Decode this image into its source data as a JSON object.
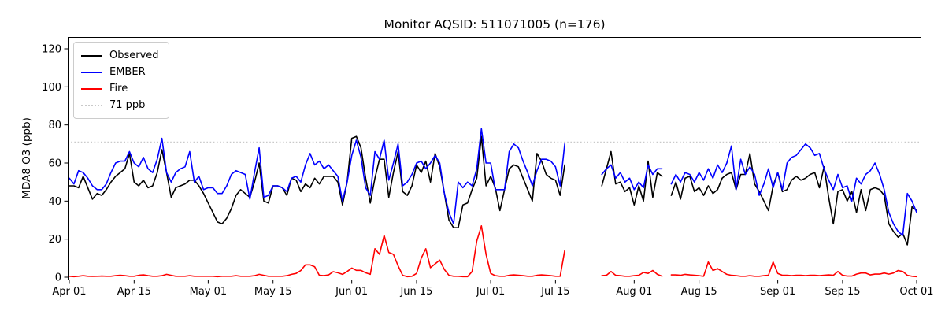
{
  "header": {
    "title": "Monitor AQSID: 511071005 (n=176)"
  },
  "legend": {
    "items": [
      {
        "label": "Observed",
        "color": "#000000",
        "style": "solid"
      },
      {
        "label": "EMBER",
        "color": "#0000ff",
        "style": "solid"
      },
      {
        "label": "Fire",
        "color": "#ff0000",
        "style": "solid"
      },
      {
        "label": "71 ppb",
        "color": "#c9c9c9",
        "style": "dotted"
      }
    ]
  },
  "chart_data": {
    "type": "line",
    "title": "Monitor AQSID: 511071005 (n=176)",
    "xlabel": "",
    "ylabel": "MDA8 O3 (ppb)",
    "ylim": [
      -1.2,
      126
    ],
    "yticks": [
      0,
      20,
      40,
      60,
      80,
      100,
      120
    ],
    "xticks": [
      {
        "day": 0,
        "label": "Apr 01"
      },
      {
        "day": 14,
        "label": "Apr 15"
      },
      {
        "day": 30,
        "label": "May 01"
      },
      {
        "day": 44,
        "label": "May 15"
      },
      {
        "day": 61,
        "label": "Jun 01"
      },
      {
        "day": 75,
        "label": "Jun 15"
      },
      {
        "day": 91,
        "label": "Jul 01"
      },
      {
        "day": 105,
        "label": "Jul 15"
      },
      {
        "day": 122,
        "label": "Aug 01"
      },
      {
        "day": 136,
        "label": "Aug 15"
      },
      {
        "day": 153,
        "label": "Sep 01"
      },
      {
        "day": 167,
        "label": "Sep 15"
      },
      {
        "day": 183,
        "label": "Oct 01"
      }
    ],
    "x_start": "Apr 01",
    "x_end": "Oct 01",
    "n_days_span": 184,
    "n_valid_points": 176,
    "missing_dates": [
      "Jul 18",
      "Jul 19",
      "Jul 20",
      "Jul 21",
      "Jul 22",
      "Jul 23",
      "Jul 24",
      "Aug 08"
    ],
    "threshold": {
      "value": 71,
      "label": "71 ppb",
      "color": "#c9c9c9",
      "style": "dotted"
    },
    "grid": false,
    "legend_position": "upper left",
    "series": [
      {
        "name": "Observed",
        "color": "#000000",
        "values": [
          48,
          48,
          47,
          53,
          47,
          41,
          44,
          43,
          46,
          50,
          53,
          55,
          57,
          65,
          50,
          48,
          51,
          47,
          48,
          55,
          67,
          55,
          42,
          47,
          48,
          49,
          51,
          51,
          48,
          44,
          39,
          34,
          29,
          28,
          31,
          36,
          43,
          46,
          44,
          42,
          50,
          60,
          40,
          39,
          48,
          48,
          47,
          43,
          52,
          51,
          45,
          49,
          47,
          52,
          49,
          53,
          53,
          53,
          50,
          38,
          50,
          73,
          74,
          68,
          52,
          39,
          52,
          62,
          62,
          42,
          55,
          66,
          45,
          43,
          48,
          59,
          55,
          61,
          50,
          65,
          58,
          44,
          30,
          26,
          26,
          38,
          39,
          46,
          52,
          74,
          48,
          53,
          47,
          35,
          46,
          57,
          59,
          58,
          52,
          46,
          40,
          65,
          61,
          54,
          52,
          51,
          43,
          59,
          null,
          null,
          null,
          null,
          null,
          null,
          null,
          48,
          57,
          66,
          49,
          50,
          45,
          47,
          38,
          48,
          40,
          61,
          42,
          55,
          53,
          null,
          43,
          50,
          41,
          52,
          53,
          45,
          47,
          43,
          48,
          44,
          46,
          52,
          54,
          55,
          46,
          54,
          54,
          65,
          49,
          45,
          40,
          35,
          48,
          55,
          45,
          46,
          51,
          53,
          51,
          52,
          54,
          55,
          47,
          58,
          42,
          28,
          45,
          46,
          40,
          45,
          34,
          46,
          35,
          46,
          47,
          46,
          43,
          28,
          24,
          21,
          23,
          17,
          37,
          35
        ]
      },
      {
        "name": "EMBER",
        "color": "#0000ff",
        "values": [
          52,
          49,
          56,
          55,
          52,
          48,
          46,
          46,
          49,
          55,
          60,
          61,
          61,
          66,
          60,
          58,
          63,
          57,
          55,
          62,
          73,
          55,
          50,
          55,
          57,
          58,
          66,
          50,
          53,
          46,
          47,
          47,
          44,
          44,
          48,
          54,
          56,
          55,
          54,
          41,
          55,
          68,
          42,
          43,
          48,
          48,
          47,
          45,
          52,
          53,
          50,
          59,
          65,
          59,
          61,
          57,
          59,
          56,
          53,
          40,
          50,
          64,
          72,
          63,
          47,
          43,
          66,
          62,
          72,
          51,
          60,
          70,
          48,
          50,
          54,
          60,
          61,
          57,
          60,
          64,
          60,
          44,
          34,
          28,
          50,
          47,
          50,
          48,
          57,
          78,
          60,
          60,
          46,
          46,
          46,
          66,
          70,
          68,
          61,
          55,
          48,
          56,
          62,
          62,
          61,
          58,
          48,
          70,
          null,
          null,
          null,
          null,
          null,
          null,
          null,
          54,
          57,
          59,
          52,
          55,
          50,
          52,
          46,
          50,
          47,
          59,
          54,
          57,
          57,
          null,
          49,
          54,
          50,
          55,
          54,
          50,
          55,
          51,
          57,
          52,
          59,
          55,
          60,
          69,
          46,
          62,
          54,
          58,
          54,
          43,
          49,
          57,
          47,
          55,
          46,
          60,
          63,
          64,
          67,
          70,
          68,
          64,
          65,
          57,
          51,
          46,
          54,
          47,
          48,
          40,
          52,
          49,
          54,
          56,
          60,
          54,
          46,
          34,
          28,
          24,
          22,
          44,
          40,
          34
        ]
      },
      {
        "name": "Fire",
        "color": "#ff0000",
        "values": [
          0.5,
          0.3,
          0.5,
          0.8,
          0.5,
          0.4,
          0.5,
          0.6,
          0.5,
          0.5,
          0.8,
          1,
          0.8,
          0.5,
          0.5,
          1,
          1.2,
          0.8,
          0.5,
          0.5,
          0.8,
          1.5,
          1,
          0.5,
          0.5,
          0.5,
          0.8,
          0.5,
          0.5,
          0.5,
          0.5,
          0.5,
          0.3,
          0.5,
          0.5,
          0.5,
          0.8,
          0.5,
          0.5,
          0.5,
          0.8,
          1.5,
          1,
          0.5,
          0.5,
          0.5,
          0.5,
          0.8,
          1.5,
          2,
          3.5,
          6.5,
          6.5,
          5.5,
          1,
          0.8,
          1.2,
          2.9,
          2.3,
          1.5,
          3,
          4.8,
          3.6,
          3.6,
          2.3,
          1.5,
          15,
          12,
          22,
          13,
          12,
          6,
          1,
          0.3,
          0.5,
          2,
          10,
          15,
          5,
          7,
          9,
          4,
          1,
          0.5,
          0.5,
          0.3,
          0.3,
          3,
          19,
          27,
          12,
          2,
          0.8,
          0.5,
          0.5,
          1,
          1.2,
          1,
          0.8,
          0.5,
          0.5,
          1,
          1.2,
          1,
          0.8,
          0.5,
          0.5,
          14,
          null,
          null,
          null,
          null,
          null,
          null,
          null,
          0.8,
          1,
          3,
          1,
          0.8,
          0.5,
          0.5,
          0.8,
          1,
          2.5,
          2,
          3.5,
          1.5,
          0.5,
          null,
          1.2,
          1.2,
          1,
          1.5,
          1.2,
          1,
          0.8,
          0.5,
          8,
          3.5,
          4.5,
          3,
          1.5,
          1,
          0.8,
          0.5,
          0.5,
          0.8,
          0.5,
          0.5,
          0.8,
          1,
          8,
          2,
          1,
          1,
          0.8,
          1,
          1,
          0.8,
          1,
          1,
          0.8,
          1,
          1.2,
          1,
          3,
          1,
          0.6,
          0.6,
          1.6,
          2.2,
          2.2,
          1.2,
          1.6,
          1.6,
          2.2,
          1.6,
          2.2,
          3.5,
          3,
          1,
          0.5,
          0.3
        ]
      }
    ]
  }
}
